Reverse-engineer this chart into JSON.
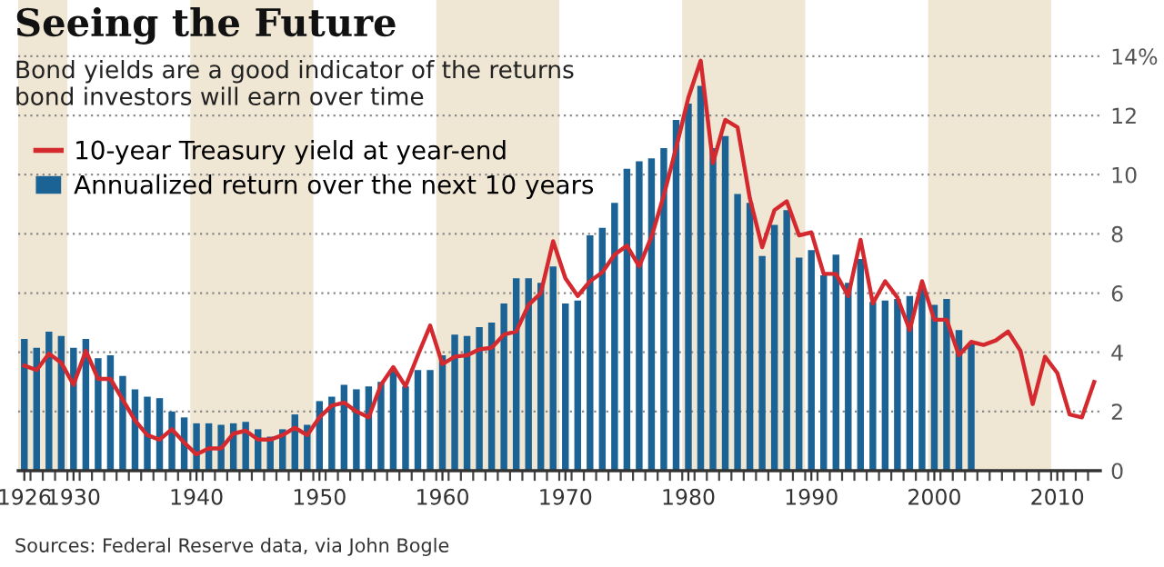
{
  "chart_data": {
    "type": "bar",
    "title": "Seeing the Future",
    "subtitle": "Bond yields are a good indicator of the returns\nbond investors will earn over time",
    "annotations": [
      "Sources: Federal Reserve data, via John Bogle"
    ],
    "x": [
      1926,
      1927,
      1928,
      1929,
      1930,
      1931,
      1932,
      1933,
      1934,
      1935,
      1936,
      1937,
      1938,
      1939,
      1940,
      1941,
      1942,
      1943,
      1944,
      1945,
      1946,
      1947,
      1948,
      1949,
      1950,
      1951,
      1952,
      1953,
      1954,
      1955,
      1956,
      1957,
      1958,
      1959,
      1960,
      1961,
      1962,
      1963,
      1964,
      1965,
      1966,
      1967,
      1968,
      1969,
      1970,
      1971,
      1972,
      1973,
      1974,
      1975,
      1976,
      1977,
      1978,
      1979,
      1980,
      1981,
      1982,
      1983,
      1984,
      1985,
      1986,
      1987,
      1988,
      1989,
      1990,
      1991,
      1992,
      1993,
      1994,
      1995,
      1996,
      1997,
      1998,
      1999,
      2000,
      2001,
      2002,
      2003
    ],
    "series": [
      {
        "name": "Annualized return over the next 10 years",
        "color": "#1b6394",
        "values": [
          4.45,
          4.15,
          4.7,
          4.55,
          4.15,
          4.45,
          3.8,
          3.9,
          3.2,
          2.75,
          2.5,
          2.45,
          2.0,
          1.8,
          1.6,
          1.6,
          1.55,
          1.6,
          1.65,
          1.4,
          1.15,
          1.4,
          1.9,
          1.55,
          2.35,
          2.5,
          2.9,
          2.75,
          2.85,
          3.0,
          3.4,
          2.85,
          3.4,
          3.4,
          3.9,
          4.6,
          4.55,
          4.85,
          5.0,
          5.65,
          6.5,
          6.5,
          6.35,
          6.9,
          5.65,
          5.75,
          7.95,
          8.2,
          9.05,
          10.2,
          10.45,
          10.55,
          10.9,
          11.85,
          12.4,
          13.0,
          10.9,
          11.3,
          9.35,
          9.05,
          7.25,
          8.3,
          8.8,
          7.2,
          7.45,
          6.6,
          7.3,
          6.35,
          7.15,
          5.7,
          5.75,
          5.8,
          5.9,
          6.25,
          5.6,
          5.8,
          4.75,
          4.3
        ]
      },
      {
        "name": "10-year Treasury yield at year-end",
        "type": "line",
        "color": "#d42a2f",
        "x": [
          1926,
          1927,
          1928,
          1929,
          1930,
          1931,
          1932,
          1933,
          1934,
          1935,
          1936,
          1937,
          1938,
          1939,
          1940,
          1941,
          1942,
          1943,
          1944,
          1945,
          1946,
          1947,
          1948,
          1949,
          1950,
          1951,
          1952,
          1953,
          1954,
          1955,
          1956,
          1957,
          1958,
          1959,
          1960,
          1961,
          1962,
          1963,
          1964,
          1965,
          1966,
          1967,
          1968,
          1969,
          1970,
          1971,
          1972,
          1973,
          1974,
          1975,
          1976,
          1977,
          1978,
          1979,
          1980,
          1981,
          1982,
          1983,
          1984,
          1985,
          1986,
          1987,
          1988,
          1989,
          1990,
          1991,
          1992,
          1993,
          1994,
          1995,
          1996,
          1997,
          1998,
          1999,
          2000,
          2001,
          2002,
          2003,
          2004,
          2005,
          2006,
          2007,
          2008,
          2009,
          2010,
          2011,
          2012,
          2013
        ],
        "values": [
          3.55,
          3.4,
          3.95,
          3.65,
          2.9,
          4.05,
          3.1,
          3.1,
          2.4,
          1.7,
          1.2,
          1.05,
          1.4,
          0.95,
          0.55,
          0.75,
          0.75,
          1.25,
          1.35,
          1.05,
          1.05,
          1.2,
          1.45,
          1.2,
          1.8,
          2.2,
          2.3,
          2.0,
          1.8,
          2.9,
          3.5,
          2.85,
          3.9,
          4.9,
          3.6,
          3.85,
          3.9,
          4.1,
          4.15,
          4.6,
          4.7,
          5.6,
          6.0,
          7.75,
          6.5,
          5.9,
          6.4,
          6.7,
          7.3,
          7.6,
          6.9,
          7.9,
          9.3,
          10.9,
          12.6,
          13.85,
          10.4,
          11.85,
          11.6,
          9.2,
          7.55,
          8.8,
          9.1,
          7.95,
          8.05,
          6.65,
          6.65,
          5.9,
          7.8,
          5.65,
          6.4,
          5.85,
          4.75,
          6.4,
          5.1,
          5.1,
          3.9,
          4.35,
          4.25,
          4.4,
          4.7,
          4.05,
          2.25,
          3.85,
          3.3,
          1.9,
          1.8,
          3.0
        ]
      }
    ],
    "bands": [
      {
        "axis": "x",
        "from": 1925.5,
        "to": 1929.5,
        "color": "#efe6d3"
      },
      {
        "axis": "x",
        "from": 1939.5,
        "to": 1949.5,
        "color": "#efe6d3"
      },
      {
        "axis": "x",
        "from": 1959.5,
        "to": 1969.5,
        "color": "#efe6d3"
      },
      {
        "axis": "x",
        "from": 1979.5,
        "to": 1989.5,
        "color": "#efe6d3"
      },
      {
        "axis": "x",
        "from": 1999.5,
        "to": 2009.5,
        "color": "#efe6d3"
      }
    ],
    "xlim": [
      1925.5,
      2013.5
    ],
    "xticks": [
      1926,
      1930,
      1940,
      1950,
      1960,
      1970,
      1980,
      1990,
      2000,
      2010,
      {
        "value": 1926.5,
        "label": null
      },
      {
        "value": 1927.5,
        "label": null
      },
      {
        "value": 1928.5,
        "label": null
      },
      {
        "value": 1929.5,
        "label": null
      },
      {
        "value": 1930.5,
        "label": null
      },
      {
        "value": 1931.5,
        "label": null
      },
      {
        "value": 1932.5,
        "label": null
      },
      {
        "value": 1933.5,
        "label": null
      },
      {
        "value": 1934.5,
        "label": null
      },
      {
        "value": 1935.5,
        "label": null
      },
      {
        "value": 1936.5,
        "label": null
      },
      {
        "value": 1937.5,
        "label": null
      },
      {
        "value": 1938.5,
        "label": null
      },
      {
        "value": 1939.5,
        "label": null
      },
      {
        "value": 1940.5,
        "label": null
      },
      {
        "value": 1941.5,
        "label": null
      },
      {
        "value": 1942.5,
        "label": null
      },
      {
        "value": 1943.5,
        "label": null
      },
      {
        "value": 1944.5,
        "label": null
      },
      {
        "value": 1945.5,
        "label": null
      },
      {
        "value": 1946.5,
        "label": null
      },
      {
        "value": 1947.5,
        "label": null
      },
      {
        "value": 1948.5,
        "label": null
      },
      {
        "value": 1949.5,
        "label": null
      },
      {
        "value": 1950.5,
        "label": null
      },
      {
        "value": 1951.5,
        "label": null
      },
      {
        "value": 1952.5,
        "label": null
      },
      {
        "value": 1953.5,
        "label": null
      },
      {
        "value": 1954.5,
        "label": null
      },
      {
        "value": 1955.5,
        "label": null
      },
      {
        "value": 1956.5,
        "label": null
      },
      {
        "value": 1957.5,
        "label": null
      },
      {
        "value": 1958.5,
        "label": null
      },
      {
        "value": 1959.5,
        "label": null
      },
      {
        "value": 1960.5,
        "label": null
      },
      {
        "value": 1961.5,
        "label": null
      },
      {
        "value": 1962.5,
        "label": null
      },
      {
        "value": 1963.5,
        "label": null
      },
      {
        "value": 1964.5,
        "label": null
      },
      {
        "value": 1965.5,
        "label": null
      },
      {
        "value": 1966.5,
        "label": null
      },
      {
        "value": 1967.5,
        "label": null
      },
      {
        "value": 1968.5,
        "label": null
      },
      {
        "value": 1969.5,
        "label": null
      },
      {
        "value": 1970.5,
        "label": null
      },
      {
        "value": 1971.5,
        "label": null
      },
      {
        "value": 1972.5,
        "label": null
      },
      {
        "value": 1973.5,
        "label": null
      },
      {
        "value": 1974.5,
        "label": null
      },
      {
        "value": 1975.5,
        "label": null
      },
      {
        "value": 1976.5,
        "label": null
      },
      {
        "value": 1977.5,
        "label": null
      },
      {
        "value": 1978.5,
        "label": null
      },
      {
        "value": 1979.5,
        "label": null
      },
      {
        "value": 1980.5,
        "label": null
      },
      {
        "value": 1981.5,
        "label": null
      },
      {
        "value": 1982.5,
        "label": null
      },
      {
        "value": 1983.5,
        "label": null
      },
      {
        "value": 1984.5,
        "label": null
      },
      {
        "value": 1985.5,
        "label": null
      },
      {
        "value": 1986.5,
        "label": null
      },
      {
        "value": 1987.5,
        "label": null
      },
      {
        "value": 1988.5,
        "label": null
      },
      {
        "value": 1989.5,
        "label": null
      },
      {
        "value": 1990.5,
        "label": null
      },
      {
        "value": 1991.5,
        "label": null
      },
      {
        "value": 1992.5,
        "label": null
      },
      {
        "value": 1993.5,
        "label": null
      },
      {
        "value": 1994.5,
        "label": null
      },
      {
        "value": 1995.5,
        "label": null
      },
      {
        "value": 1996.5,
        "label": null
      },
      {
        "value": 1997.5,
        "label": null
      },
      {
        "value": 1998.5,
        "label": null
      },
      {
        "value": 1999.5,
        "label": null
      },
      {
        "value": 2000.5,
        "label": null
      },
      {
        "value": 2001.5,
        "label": null
      },
      {
        "value": 2002.5,
        "label": null
      },
      {
        "value": 2003.5,
        "label": null
      },
      {
        "value": 2004.5,
        "label": null
      },
      {
        "value": 2005.5,
        "label": null
      },
      {
        "value": 2006.5,
        "label": null
      },
      {
        "value": 2007.5,
        "label": null
      },
      {
        "value": 2008.5,
        "label": null
      },
      {
        "value": 2009.5,
        "label": null
      },
      {
        "value": 2010.5,
        "label": null
      },
      {
        "value": 2011.5,
        "label": null
      },
      {
        "value": 2012.5,
        "label": null
      }
    ],
    "ylim": [
      0,
      15.9
    ],
    "yticks": [
      0,
      2,
      4,
      6,
      8,
      10,
      12,
      {
        "value": 14,
        "label": "14%"
      }
    ],
    "grid": "y",
    "legend": "top left"
  }
}
